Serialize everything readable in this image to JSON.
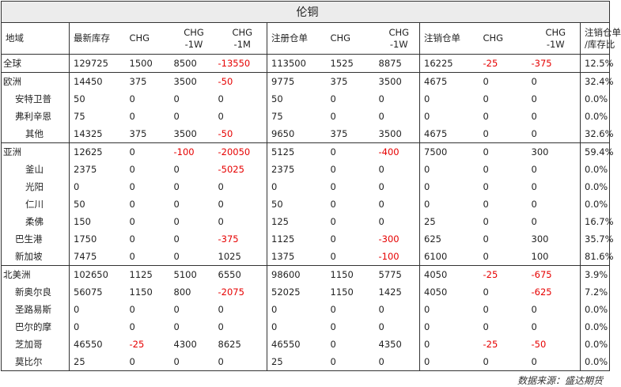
{
  "title": "伦铜",
  "headers": [
    "地域",
    "最新库存",
    "CHG",
    "CHG\n-1W",
    "CHG\n-1M",
    "注册仓单",
    "CHG",
    "CHG\n-1W",
    "注销仓单",
    "CHG",
    "CHG\n-1W",
    "注销仓单\n/库存比"
  ],
  "rows": [
    {
      "name": "全球",
      "level": 0,
      "cells": [
        "129725",
        "1500",
        "8500",
        "-13550",
        "113500",
        "1525",
        "8875",
        "16225",
        "-25",
        "-375",
        "12.5%"
      ],
      "neg": [
        3,
        8,
        9
      ]
    },
    {
      "name": "欧洲",
      "level": 0,
      "cells": [
        "14450",
        "375",
        "3500",
        "-50",
        "9775",
        "375",
        "3500",
        "4675",
        "0",
        "0",
        "32.4%"
      ],
      "neg": [
        3
      ]
    },
    {
      "name": "安特卫普",
      "level": 1,
      "cells": [
        "50",
        "0",
        "0",
        "0",
        "50",
        "0",
        "0",
        "0",
        "0",
        "0",
        "0.0%"
      ],
      "neg": []
    },
    {
      "name": "弗利辛恩",
      "level": 1,
      "cells": [
        "75",
        "0",
        "0",
        "0",
        "75",
        "0",
        "0",
        "0",
        "0",
        "0",
        "0.0%"
      ],
      "neg": []
    },
    {
      "name": "其他",
      "level": 2,
      "cells": [
        "14325",
        "375",
        "3500",
        "-50",
        "9650",
        "375",
        "3500",
        "4675",
        "0",
        "0",
        "32.6%"
      ],
      "neg": [
        3
      ]
    },
    {
      "name": "亚洲",
      "level": 0,
      "cells": [
        "12625",
        "0",
        "-100",
        "-20050",
        "5125",
        "0",
        "-400",
        "7500",
        "0",
        "300",
        "59.4%"
      ],
      "neg": [
        2,
        3,
        6
      ]
    },
    {
      "name": "釜山",
      "level": 2,
      "cells": [
        "2375",
        "0",
        "0",
        "-5025",
        "2375",
        "0",
        "0",
        "0",
        "0",
        "0",
        "0.0%"
      ],
      "neg": [
        3
      ]
    },
    {
      "name": "光阳",
      "level": 2,
      "cells": [
        "0",
        "0",
        "0",
        "0",
        "0",
        "0",
        "0",
        "0",
        "0",
        "0",
        "0.0%"
      ],
      "neg": []
    },
    {
      "name": "仁川",
      "level": 2,
      "cells": [
        "50",
        "0",
        "0",
        "0",
        "50",
        "0",
        "0",
        "0",
        "0",
        "0",
        "0.0%"
      ],
      "neg": []
    },
    {
      "name": "柔佛",
      "level": 2,
      "cells": [
        "150",
        "0",
        "0",
        "0",
        "125",
        "0",
        "0",
        "25",
        "0",
        "0",
        "16.7%"
      ],
      "neg": []
    },
    {
      "name": "巴生港",
      "level": 1,
      "cells": [
        "1750",
        "0",
        "0",
        "-375",
        "1125",
        "0",
        "-300",
        "625",
        "0",
        "300",
        "35.7%"
      ],
      "neg": [
        3,
        6
      ]
    },
    {
      "name": "新加坡",
      "level": 1,
      "cells": [
        "7475",
        "0",
        "0",
        "1025",
        "1375",
        "0",
        "-100",
        "6100",
        "0",
        "100",
        "81.6%"
      ],
      "neg": [
        6
      ]
    },
    {
      "name": "北美洲",
      "level": 0,
      "cells": [
        "102650",
        "1125",
        "5100",
        "6550",
        "98600",
        "1150",
        "5775",
        "4050",
        "-25",
        "-675",
        "3.9%"
      ],
      "neg": [
        8,
        9
      ]
    },
    {
      "name": "新奥尔良",
      "level": 1,
      "cells": [
        "56075",
        "1150",
        "800",
        "-2075",
        "52025",
        "1150",
        "1425",
        "4050",
        "0",
        "-625",
        "7.2%"
      ],
      "neg": [
        3,
        9
      ]
    },
    {
      "name": "圣路易斯",
      "level": 1,
      "cells": [
        "0",
        "0",
        "0",
        "0",
        "0",
        "0",
        "0",
        "0",
        "0",
        "0",
        "0.0%"
      ],
      "neg": []
    },
    {
      "name": "巴尔的摩",
      "level": 1,
      "cells": [
        "0",
        "0",
        "0",
        "0",
        "0",
        "0",
        "0",
        "0",
        "0",
        "0",
        "0.0%"
      ],
      "neg": []
    },
    {
      "name": "芝加哥",
      "level": 1,
      "cells": [
        "46550",
        "-25",
        "4300",
        "8625",
        "46550",
        "0",
        "4350",
        "0",
        "-25",
        "-50",
        "0.0%"
      ],
      "neg": [
        1,
        8,
        9
      ]
    },
    {
      "name": "莫比尔",
      "level": 1,
      "cells": [
        "25",
        "0",
        "0",
        "0",
        "25",
        "0",
        "0",
        "0",
        "0",
        "0",
        "0.0%"
      ],
      "neg": []
    }
  ],
  "source": "数据来源：盛达期货",
  "colors": {
    "negative": "#e60000",
    "title_bg": "#ececec",
    "border": "#333333"
  }
}
